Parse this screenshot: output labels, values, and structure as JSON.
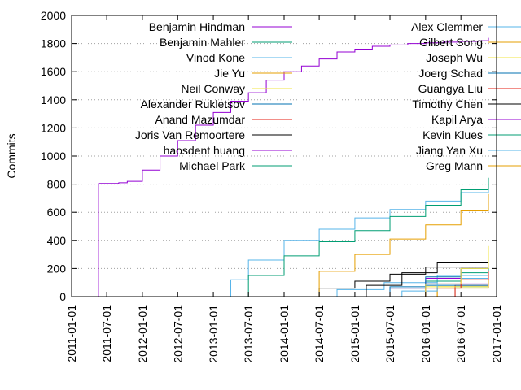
{
  "chart_data": {
    "type": "line",
    "title": "",
    "xlabel": "",
    "ylabel": "Commits",
    "xlim": [
      "2011-01-01",
      "2017-01-01"
    ],
    "ylim": [
      0,
      2000
    ],
    "x_ticks": [
      "2011-01-01",
      "2011-07-01",
      "2012-01-01",
      "2012-07-01",
      "2013-01-01",
      "2013-07-01",
      "2014-01-01",
      "2014-07-01",
      "2015-01-01",
      "2015-07-01",
      "2016-01-01",
      "2016-07-01",
      "2017-01-01"
    ],
    "y_ticks": [
      0,
      200,
      400,
      600,
      800,
      1000,
      1200,
      1400,
      1600,
      1800,
      2000
    ],
    "grid": "horizontal dotted",
    "legend": "top, two columns",
    "series": [
      {
        "name": "Benjamin Hindman",
        "color": "#9400d3",
        "x": [
          "2011-05-15",
          "2011-05-20",
          "2011-09-01",
          "2011-10-15",
          "2012-01-01",
          "2012-04-01",
          "2012-07-01",
          "2012-10-01",
          "2013-01-01",
          "2013-04-01",
          "2013-07-01",
          "2013-10-01",
          "2014-01-01",
          "2014-04-01",
          "2014-07-01",
          "2014-10-01",
          "2015-01-01",
          "2015-04-01",
          "2015-07-01",
          "2015-10-01",
          "2016-01-01",
          "2016-04-01",
          "2016-07-01",
          "2016-10-01",
          "2016-11-20"
        ],
        "values": [
          0,
          805,
          810,
          820,
          900,
          1000,
          1110,
          1220,
          1310,
          1390,
          1450,
          1540,
          1600,
          1640,
          1690,
          1740,
          1760,
          1780,
          1790,
          1800,
          1805,
          1810,
          1815,
          1820,
          1840
        ]
      },
      {
        "name": "Benjamin Mahler",
        "color": "#009e73",
        "x": [
          "2013-03-15",
          "2013-07-01",
          "2014-01-01",
          "2014-07-01",
          "2015-01-01",
          "2015-07-01",
          "2016-01-01",
          "2016-07-01",
          "2016-11-20"
        ],
        "values": [
          0,
          150,
          290,
          390,
          470,
          570,
          650,
          760,
          845
        ]
      },
      {
        "name": "Vinod Kone",
        "color": "#56b4e9",
        "x": [
          "2012-12-15",
          "2013-04-01",
          "2013-07-01",
          "2014-01-01",
          "2014-07-01",
          "2015-01-01",
          "2015-07-01",
          "2016-01-01",
          "2016-07-01",
          "2016-11-20"
        ],
        "values": [
          0,
          120,
          260,
          400,
          480,
          560,
          620,
          680,
          740,
          800
        ]
      },
      {
        "name": "Jie Yu",
        "color": "#e69f00",
        "x": [
          "2014-01-01",
          "2014-07-01",
          "2015-01-01",
          "2015-07-01",
          "2016-01-01",
          "2016-07-01",
          "2016-11-20"
        ],
        "values": [
          0,
          180,
          300,
          410,
          510,
          610,
          730
        ]
      },
      {
        "name": "Neil Conway",
        "color": "#f0e442",
        "x": [
          "2015-09-01",
          "2016-01-01",
          "2016-07-01",
          "2016-11-20"
        ],
        "values": [
          0,
          90,
          200,
          360
        ]
      },
      {
        "name": "Alexander Rukletsov",
        "color": "#0072b2",
        "x": [
          "2014-10-01",
          "2015-07-01",
          "2016-01-01",
          "2016-07-01",
          "2016-11-20"
        ],
        "values": [
          0,
          70,
          140,
          200,
          255
        ]
      },
      {
        "name": "Anand Mazumdar",
        "color": "#e51e10",
        "x": [
          "2015-06-01",
          "2016-01-01",
          "2016-07-01",
          "2016-11-20"
        ],
        "values": [
          0,
          60,
          120,
          180
        ]
      },
      {
        "name": "Joris Van Remoortere",
        "color": "#000000",
        "x": [
          "2014-09-01",
          "2015-03-01",
          "2015-09-01",
          "2016-03-01",
          "2016-11-20"
        ],
        "values": [
          0,
          80,
          170,
          240,
          290
        ]
      },
      {
        "name": "haosdent huang",
        "color": "#9400d3",
        "x": [
          "2015-01-01",
          "2015-07-01",
          "2016-01-01",
          "2016-07-01",
          "2016-11-20"
        ],
        "values": [
          0,
          60,
          130,
          200,
          260
        ]
      },
      {
        "name": "Michael Park",
        "color": "#009e73",
        "x": [
          "2014-07-01",
          "2015-07-01",
          "2016-01-01",
          "2016-07-01",
          "2016-11-20"
        ],
        "values": [
          0,
          60,
          110,
          170,
          210
        ]
      },
      {
        "name": "Alex Clemmer",
        "color": "#56b4e9",
        "x": [
          "2015-03-01",
          "2015-09-01",
          "2016-03-01",
          "2016-11-20"
        ],
        "values": [
          0,
          40,
          130,
          220
        ]
      },
      {
        "name": "Gilbert Song",
        "color": "#e69f00",
        "x": [
          "2015-09-01",
          "2016-03-01",
          "2016-11-20"
        ],
        "values": [
          0,
          60,
          170
        ]
      },
      {
        "name": "Joseph Wu",
        "color": "#f0e442",
        "x": [
          "2015-06-01",
          "2016-01-01",
          "2016-11-20"
        ],
        "values": [
          0,
          70,
          180
        ]
      },
      {
        "name": "Joerg Schad",
        "color": "#0072b2",
        "x": [
          "2015-06-01",
          "2016-01-01",
          "2016-11-20"
        ],
        "values": [
          0,
          80,
          190
        ]
      },
      {
        "name": "Guangya Liu",
        "color": "#e51e10",
        "x": [
          "2015-12-01",
          "2016-06-01",
          "2016-11-20"
        ],
        "values": [
          0,
          80,
          170
        ]
      },
      {
        "name": "Timothy Chen",
        "color": "#000000",
        "x": [
          "2014-01-01",
          "2014-07-01",
          "2015-01-01",
          "2015-07-01",
          "2016-01-01",
          "2016-11-20"
        ],
        "values": [
          0,
          60,
          110,
          160,
          210,
          280
        ]
      },
      {
        "name": "Kapil Arya",
        "color": "#9400d3",
        "x": [
          "2015-03-01",
          "2016-01-01",
          "2016-11-20"
        ],
        "values": [
          0,
          90,
          160
        ]
      },
      {
        "name": "Kevin Klues",
        "color": "#009e73",
        "x": [
          "2015-12-01",
          "2016-06-01",
          "2016-11-20"
        ],
        "values": [
          0,
          70,
          170
        ]
      },
      {
        "name": "Jiang Yan Xu",
        "color": "#56b4e9",
        "x": [
          "2014-01-01",
          "2014-10-01",
          "2015-06-01",
          "2016-03-01",
          "2016-11-20"
        ],
        "values": [
          0,
          50,
          100,
          150,
          220
        ]
      },
      {
        "name": "Greg Mann",
        "color": "#e69f00",
        "x": [
          "2015-09-01",
          "2016-03-01",
          "2016-11-20"
        ],
        "values": [
          0,
          70,
          150
        ]
      }
    ]
  }
}
